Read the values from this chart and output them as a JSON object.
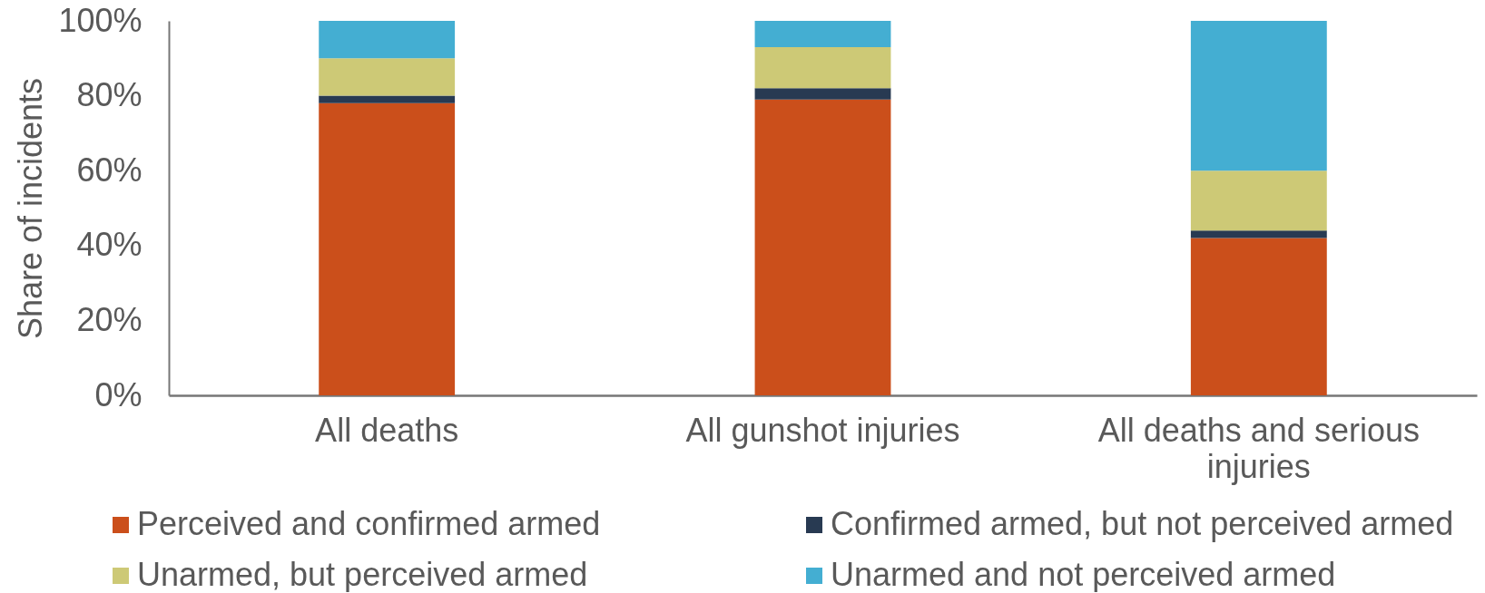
{
  "chart_data": {
    "type": "bar",
    "stacked": true,
    "ylabel": "Share of incidents",
    "categories": [
      "All deaths",
      "All gunshot injuries",
      "All deaths and serious injuries"
    ],
    "series": [
      {
        "name": "Perceived and confirmed armed",
        "color": "#cb4f1b",
        "values": [
          78,
          79,
          42
        ]
      },
      {
        "name": "Confirmed armed, but not perceived armed",
        "color": "#283a52",
        "values": [
          2,
          3,
          2
        ]
      },
      {
        "name": "Unarmed, but perceived armed",
        "color": "#cdc976",
        "values": [
          10,
          11,
          16
        ]
      },
      {
        "name": "Unarmed and not perceived armed",
        "color": "#44aed2",
        "values": [
          10,
          7,
          40
        ]
      }
    ],
    "ylim": [
      0,
      100
    ],
    "yticks": [
      {
        "value": 0,
        "label": "0%"
      },
      {
        "value": 20,
        "label": "20%"
      },
      {
        "value": 40,
        "label": "40%"
      },
      {
        "value": 60,
        "label": "60%"
      },
      {
        "value": 80,
        "label": "80%"
      },
      {
        "value": 100,
        "label": "100%"
      }
    ],
    "grid": false,
    "legend": "bottom"
  }
}
